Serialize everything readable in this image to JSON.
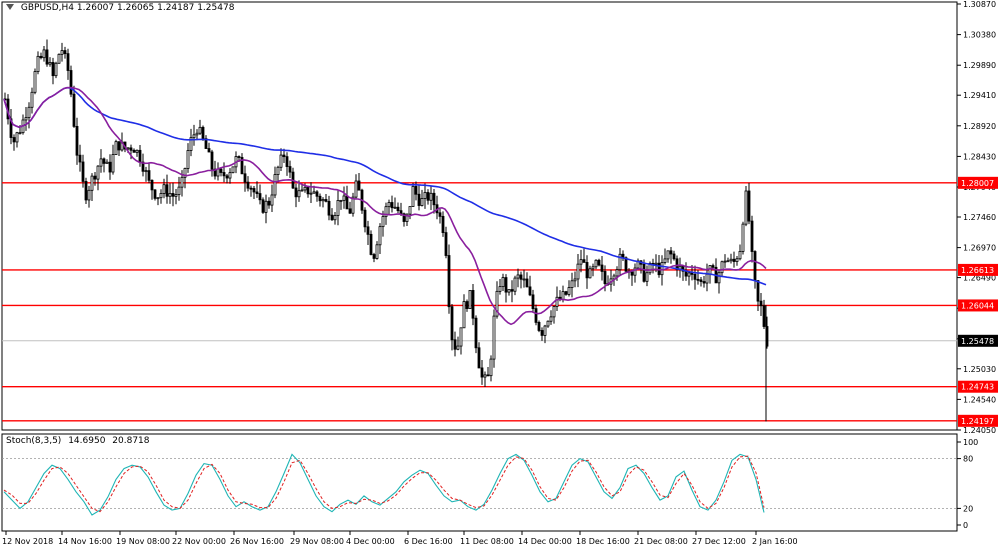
{
  "header": {
    "symbol": "GBPUSD,H4",
    "open": "1.26007",
    "high": "1.26065",
    "low": "1.24187",
    "close": "1.25478"
  },
  "stoch_header": {
    "name": "Stoch(8,3,5)",
    "k": "14.6950",
    "d": "20.8718"
  },
  "colors": {
    "candle": "#000000",
    "ma_slow": "#1f2ee6",
    "ma_fast": "#8a1f9e",
    "hline": "#ff0000",
    "stoch_k": "#1fb5b5",
    "stoch_d": "#e02020"
  },
  "chart_data": [
    {
      "type": "candlestick",
      "symbol": "GBPUSD",
      "timeframe": "H4",
      "ylim": [
        1.2405,
        1.3087
      ],
      "y_ticks": [
        "1.30870",
        "1.30380",
        "1.29890",
        "1.29410",
        "1.28920",
        "1.28430",
        "1.27940",
        "1.27460",
        "1.26970",
        "1.26490",
        "1.26000",
        "1.25510",
        "1.25030",
        "1.24540",
        "1.24050"
      ],
      "x_ticks": [
        "12 Nov 2018",
        "14 Nov 16:00",
        "19 Nov 08:00",
        "22 Nov 00:00",
        "26 Nov 16:00",
        "29 Nov 08:00",
        "4 Dec 00:00",
        "6 Dec 16:00",
        "11 Dec 08:00",
        "14 Dec 00:00",
        "18 Dec 16:00",
        "21 Dec 08:00",
        "27 Dec 12:00",
        "2 Jan 16:00"
      ],
      "horizontal_levels": [
        "1.28007",
        "1.26613",
        "1.26044",
        "1.24743",
        "1.24197"
      ],
      "current_price": "1.25478",
      "close_path": [
        [
          0,
          1.2935
        ],
        [
          8,
          1.2865
        ],
        [
          16,
          1.289
        ],
        [
          24,
          1.293
        ],
        [
          32,
          1.299
        ],
        [
          40,
          1.301
        ],
        [
          48,
          1.297
        ],
        [
          56,
          1.302
        ],
        [
          64,
          1.2975
        ],
        [
          72,
          1.285
        ],
        [
          80,
          1.278
        ],
        [
          88,
          1.281
        ],
        [
          96,
          1.284
        ],
        [
          104,
          1.282
        ],
        [
          112,
          1.2865
        ],
        [
          120,
          1.2855
        ],
        [
          128,
          1.286
        ],
        [
          136,
          1.284
        ],
        [
          144,
          1.28
        ],
        [
          152,
          1.278
        ],
        [
          160,
          1.279
        ],
        [
          168,
          1.278
        ],
        [
          176,
          1.279
        ],
        [
          184,
          1.286
        ],
        [
          192,
          1.289
        ],
        [
          200,
          1.286
        ],
        [
          208,
          1.282
        ],
        [
          216,
          1.281
        ],
        [
          224,
          1.282
        ],
        [
          232,
          1.284
        ],
        [
          240,
          1.281
        ],
        [
          248,
          1.279
        ],
        [
          256,
          1.276
        ],
        [
          264,
          1.277
        ],
        [
          272,
          1.282
        ],
        [
          280,
          1.285
        ],
        [
          288,
          1.279
        ],
        [
          296,
          1.278
        ],
        [
          304,
          1.279
        ],
        [
          312,
          1.278
        ],
        [
          320,
          1.277
        ],
        [
          328,
          1.275
        ],
        [
          336,
          1.278
        ],
        [
          344,
          1.275
        ],
        [
          352,
          1.28
        ],
        [
          360,
          1.274
        ],
        [
          368,
          1.268
        ],
        [
          376,
          1.274
        ],
        [
          384,
          1.277
        ],
        [
          392,
          1.276
        ],
        [
          400,
          1.273
        ],
        [
          408,
          1.279
        ],
        [
          416,
          1.277
        ],
        [
          424,
          1.278
        ],
        [
          432,
          1.276
        ],
        [
          440,
          1.272
        ],
        [
          446,
          1.256
        ],
        [
          452,
          1.253
        ],
        [
          458,
          1.26
        ],
        [
          466,
          1.262
        ],
        [
          472,
          1.253
        ],
        [
          478,
          1.248
        ],
        [
          484,
          1.249
        ],
        [
          490,
          1.26
        ],
        [
          496,
          1.265
        ],
        [
          504,
          1.262
        ],
        [
          512,
          1.265
        ],
        [
          520,
          1.264
        ],
        [
          528,
          1.26
        ],
        [
          536,
          1.256
        ],
        [
          544,
          1.259
        ],
        [
          552,
          1.261
        ],
        [
          560,
          1.262
        ],
        [
          568,
          1.264
        ],
        [
          576,
          1.268
        ],
        [
          584,
          1.265
        ],
        [
          592,
          1.267
        ],
        [
          600,
          1.264
        ],
        [
          608,
          1.266
        ],
        [
          616,
          1.268
        ],
        [
          624,
          1.266
        ],
        [
          632,
          1.267
        ],
        [
          640,
          1.265
        ],
        [
          648,
          1.267
        ],
        [
          656,
          1.266
        ],
        [
          664,
          1.269
        ],
        [
          672,
          1.267
        ],
        [
          680,
          1.265
        ],
        [
          688,
          1.266
        ],
        [
          696,
          1.264
        ],
        [
          704,
          1.266
        ],
        [
          712,
          1.265
        ],
        [
          720,
          1.268
        ],
        [
          728,
          1.267
        ],
        [
          736,
          1.27
        ],
        [
          740,
          1.279
        ],
        [
          744,
          1.274
        ],
        [
          748,
          1.266
        ],
        [
          752,
          1.261
        ],
        [
          756,
          1.26
        ],
        [
          762,
          1.2548
        ]
      ]
    },
    {
      "type": "line",
      "title": "Stoch(8,3,5)",
      "ylim": [
        0,
        100
      ],
      "y_ticks": [
        "100",
        "80",
        "20",
        "0"
      ],
      "levels": [
        80,
        20
      ],
      "k_path": [
        [
          0,
          40
        ],
        [
          8,
          30
        ],
        [
          16,
          20
        ],
        [
          24,
          28
        ],
        [
          32,
          45
        ],
        [
          40,
          62
        ],
        [
          48,
          72
        ],
        [
          56,
          68
        ],
        [
          64,
          55
        ],
        [
          72,
          40
        ],
        [
          80,
          28
        ],
        [
          88,
          12
        ],
        [
          96,
          18
        ],
        [
          104,
          34
        ],
        [
          112,
          55
        ],
        [
          120,
          68
        ],
        [
          128,
          72
        ],
        [
          136,
          70
        ],
        [
          144,
          58
        ],
        [
          152,
          40
        ],
        [
          160,
          24
        ],
        [
          168,
          18
        ],
        [
          176,
          20
        ],
        [
          184,
          38
        ],
        [
          192,
          60
        ],
        [
          200,
          74
        ],
        [
          208,
          72
        ],
        [
          216,
          55
        ],
        [
          224,
          35
        ],
        [
          232,
          22
        ],
        [
          240,
          28
        ],
        [
          248,
          22
        ],
        [
          256,
          18
        ],
        [
          264,
          22
        ],
        [
          272,
          40
        ],
        [
          280,
          62
        ],
        [
          288,
          85
        ],
        [
          296,
          75
        ],
        [
          304,
          55
        ],
        [
          312,
          35
        ],
        [
          320,
          22
        ],
        [
          328,
          16
        ],
        [
          336,
          25
        ],
        [
          344,
          30
        ],
        [
          352,
          25
        ],
        [
          360,
          35
        ],
        [
          368,
          28
        ],
        [
          376,
          24
        ],
        [
          384,
          32
        ],
        [
          392,
          40
        ],
        [
          400,
          52
        ],
        [
          408,
          60
        ],
        [
          416,
          66
        ],
        [
          424,
          62
        ],
        [
          432,
          48
        ],
        [
          440,
          35
        ],
        [
          448,
          28
        ],
        [
          456,
          30
        ],
        [
          464,
          22
        ],
        [
          472,
          18
        ],
        [
          480,
          25
        ],
        [
          488,
          42
        ],
        [
          496,
          62
        ],
        [
          504,
          80
        ],
        [
          512,
          85
        ],
        [
          520,
          78
        ],
        [
          528,
          60
        ],
        [
          536,
          40
        ],
        [
          544,
          28
        ],
        [
          552,
          32
        ],
        [
          560,
          52
        ],
        [
          568,
          72
        ],
        [
          576,
          80
        ],
        [
          584,
          76
        ],
        [
          592,
          58
        ],
        [
          600,
          40
        ],
        [
          608,
          32
        ],
        [
          616,
          45
        ],
        [
          624,
          68
        ],
        [
          632,
          72
        ],
        [
          640,
          62
        ],
        [
          648,
          45
        ],
        [
          656,
          30
        ],
        [
          664,
          35
        ],
        [
          672,
          58
        ],
        [
          680,
          65
        ],
        [
          688,
          42
        ],
        [
          696,
          22
        ],
        [
          704,
          18
        ],
        [
          712,
          30
        ],
        [
          720,
          52
        ],
        [
          728,
          78
        ],
        [
          736,
          85
        ],
        [
          744,
          82
        ],
        [
          752,
          55
        ],
        [
          760,
          15
        ]
      ],
      "d_path": [
        [
          0,
          42
        ],
        [
          8,
          36
        ],
        [
          16,
          26
        ],
        [
          24,
          26
        ],
        [
          32,
          38
        ],
        [
          40,
          54
        ],
        [
          48,
          68
        ],
        [
          56,
          70
        ],
        [
          64,
          62
        ],
        [
          72,
          48
        ],
        [
          80,
          34
        ],
        [
          88,
          20
        ],
        [
          96,
          16
        ],
        [
          104,
          28
        ],
        [
          112,
          46
        ],
        [
          120,
          62
        ],
        [
          128,
          70
        ],
        [
          136,
          71
        ],
        [
          144,
          64
        ],
        [
          152,
          48
        ],
        [
          160,
          30
        ],
        [
          168,
          22
        ],
        [
          176,
          20
        ],
        [
          184,
          30
        ],
        [
          192,
          50
        ],
        [
          200,
          68
        ],
        [
          208,
          73
        ],
        [
          216,
          62
        ],
        [
          224,
          42
        ],
        [
          232,
          28
        ],
        [
          240,
          26
        ],
        [
          248,
          25
        ],
        [
          256,
          21
        ],
        [
          264,
          21
        ],
        [
          272,
          32
        ],
        [
          280,
          52
        ],
        [
          288,
          75
        ],
        [
          296,
          78
        ],
        [
          304,
          62
        ],
        [
          312,
          44
        ],
        [
          320,
          28
        ],
        [
          328,
          20
        ],
        [
          336,
          22
        ],
        [
          344,
          27
        ],
        [
          352,
          26
        ],
        [
          360,
          31
        ],
        [
          368,
          30
        ],
        [
          376,
          26
        ],
        [
          384,
          29
        ],
        [
          392,
          36
        ],
        [
          400,
          47
        ],
        [
          408,
          56
        ],
        [
          416,
          63
        ],
        [
          424,
          63
        ],
        [
          432,
          54
        ],
        [
          440,
          42
        ],
        [
          448,
          32
        ],
        [
          456,
          30
        ],
        [
          464,
          25
        ],
        [
          472,
          21
        ],
        [
          480,
          23
        ],
        [
          488,
          36
        ],
        [
          496,
          54
        ],
        [
          504,
          72
        ],
        [
          512,
          82
        ],
        [
          520,
          80
        ],
        [
          528,
          66
        ],
        [
          536,
          46
        ],
        [
          544,
          32
        ],
        [
          552,
          30
        ],
        [
          560,
          45
        ],
        [
          568,
          65
        ],
        [
          576,
          77
        ],
        [
          584,
          78
        ],
        [
          592,
          64
        ],
        [
          600,
          46
        ],
        [
          608,
          35
        ],
        [
          616,
          40
        ],
        [
          624,
          60
        ],
        [
          632,
          70
        ],
        [
          640,
          66
        ],
        [
          648,
          52
        ],
        [
          656,
          36
        ],
        [
          664,
          33
        ],
        [
          672,
          50
        ],
        [
          680,
          62
        ],
        [
          688,
          48
        ],
        [
          696,
          28
        ],
        [
          704,
          20
        ],
        [
          712,
          26
        ],
        [
          720,
          45
        ],
        [
          728,
          70
        ],
        [
          736,
          82
        ],
        [
          744,
          83
        ],
        [
          752,
          63
        ],
        [
          760,
          21
        ]
      ]
    }
  ]
}
